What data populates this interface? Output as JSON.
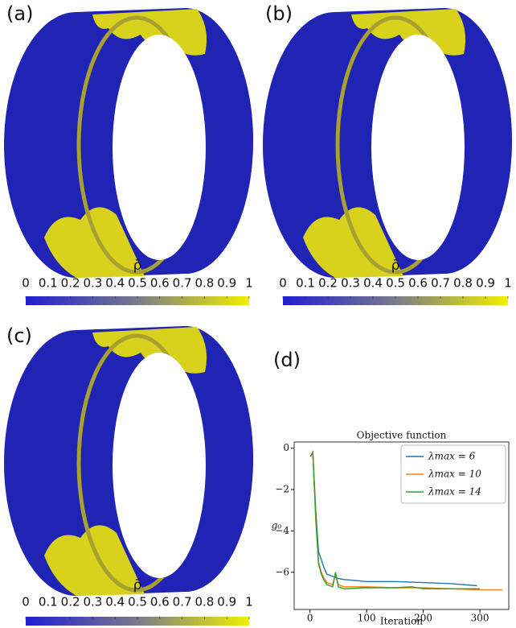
{
  "figure": {
    "panel_labels": [
      "(a)",
      "(b)",
      "(c)",
      "(d)"
    ],
    "colorbars": [
      {
        "label": "ρ̄",
        "ticks": [
          0,
          0.1,
          0.2,
          0.3,
          0.4,
          0.5,
          0.6,
          0.7,
          0.8,
          0.9,
          1
        ]
      },
      {
        "label": "ρ̄",
        "ticks": [
          0,
          0.1,
          0.2,
          0.3,
          0.4,
          0.5,
          0.6,
          0.7,
          0.8,
          0.9,
          1
        ]
      },
      {
        "label": "ρ̄",
        "ticks": [
          0,
          0.1,
          0.2,
          0.3,
          0.4,
          0.5,
          0.6,
          0.7,
          0.8,
          0.9,
          1
        ]
      }
    ]
  },
  "chart_data": {
    "type": "line",
    "title": "Objective function",
    "x_label": "Iteration",
    "y_label": "g₀",
    "xlim": [
      -28,
      351
    ],
    "ylim": [
      -7.8,
      0.3
    ],
    "xticks": [
      0,
      100,
      200,
      300
    ],
    "yticks": [
      0,
      {
        "value": -2,
        "label": "−2"
      },
      {
        "value": -4,
        "label": "−4"
      },
      {
        "value": -6,
        "label": "−6"
      }
    ],
    "legend": "upper right",
    "series": [
      {
        "name": "λmax = 6",
        "color": "#1f77b4",
        "x": [
          1,
          5,
          10,
          15,
          20,
          25,
          30,
          40,
          50,
          60,
          80,
          100,
          150,
          200,
          250,
          295
        ],
        "values": [
          -0.4,
          -0.2,
          -3,
          -5,
          -5.4,
          -5.8,
          -6.1,
          -6.2,
          -6.3,
          -6.35,
          -6.4,
          -6.45,
          -6.45,
          -6.5,
          -6.55,
          -6.65
        ]
      },
      {
        "name": "λmax = 10",
        "color": "#ff7f0e",
        "x": [
          1,
          5,
          10,
          15,
          20,
          25,
          30,
          40,
          45,
          50,
          60,
          100,
          150,
          200,
          250,
          300,
          340
        ],
        "values": [
          -0.4,
          -0.2,
          -3.5,
          -5.5,
          -6,
          -6.3,
          -6.5,
          -6.6,
          -6.1,
          -6.6,
          -6.7,
          -6.7,
          -6.75,
          -6.75,
          -6.8,
          -6.85,
          -6.85
        ]
      },
      {
        "name": "λmax = 14",
        "color": "#2ca02c",
        "x": [
          1,
          5,
          10,
          15,
          20,
          25,
          30,
          40,
          45,
          50,
          60,
          100,
          150,
          180,
          200,
          250,
          300
        ],
        "values": [
          -0.4,
          -0.2,
          -3.2,
          -5.6,
          -6.1,
          -6.4,
          -6.6,
          -6.7,
          -6.0,
          -6.7,
          -6.8,
          -6.75,
          -6.75,
          -6.7,
          -6.8,
          -6.8,
          -6.8
        ]
      }
    ]
  }
}
